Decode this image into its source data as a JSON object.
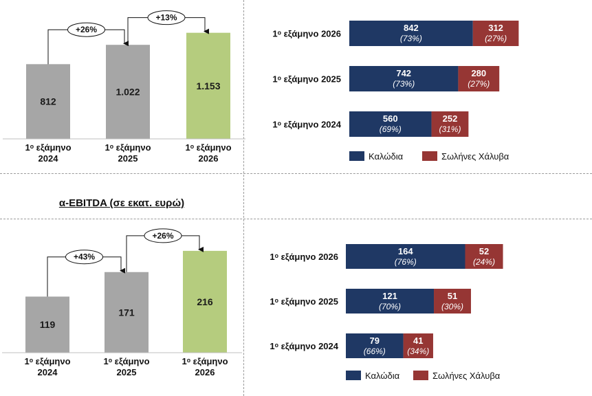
{
  "section_title": "α-EBITDA (σε εκατ. ευρώ)",
  "colors": {
    "gray_bar": "#a6a6a6",
    "green_bar": "#b5cc7e",
    "navy": "#1f3864",
    "red": "#963634"
  },
  "chart_data": [
    {
      "type": "bar",
      "title": "",
      "categories": [
        [
          "1ᵒ εξάμηνο",
          "2024"
        ],
        [
          "1ᵒ εξάμηνο",
          "2025"
        ],
        [
          "1ᵒ εξάμηνο",
          "2026"
        ]
      ],
      "values": [
        812,
        1022,
        1153
      ],
      "value_labels": [
        "812",
        "1.022",
        "1.153"
      ],
      "growth": [
        "+26%",
        "+13%"
      ],
      "ylim": [
        0,
        1300
      ]
    },
    {
      "type": "bar",
      "orientation": "horizontal",
      "stacked": true,
      "categories": [
        "1ᵒ εξάμηνο 2026",
        "1ᵒ εξάμηνο 2025",
        "1ᵒ εξάμηνο 2024"
      ],
      "series": [
        {
          "name": "Καλώδια",
          "values": [
            842,
            742,
            560
          ],
          "percents": [
            "(73%)",
            "(73%)",
            "(69%)"
          ]
        },
        {
          "name": "Σωλήνες Χάλυβα",
          "values": [
            312,
            280,
            252
          ],
          "percents": [
            "(27%)",
            "(27%)",
            "(31%)"
          ]
        }
      ],
      "legend": "bottom"
    },
    {
      "type": "bar",
      "title": "α-EBITDA (σε εκατ. ευρώ)",
      "categories": [
        [
          "1ᵒ εξάμηνο",
          "2024"
        ],
        [
          "1ᵒ εξάμηνο",
          "2025"
        ],
        [
          "1ᵒ εξάμηνο",
          "2026"
        ]
      ],
      "values": [
        119,
        171,
        216
      ],
      "value_labels": [
        "119",
        "171",
        "216"
      ],
      "growth": [
        "+43%",
        "+26%"
      ],
      "ylim": [
        0,
        245
      ]
    },
    {
      "type": "bar",
      "orientation": "horizontal",
      "stacked": true,
      "categories": [
        "1ᵒ εξάμηνο 2026",
        "1ᵒ εξάμηνο 2025",
        "1ᵒ εξάμηνο 2024"
      ],
      "series": [
        {
          "name": "Καλώδια",
          "values": [
            164,
            121,
            79
          ],
          "percents": [
            "(76%)",
            "(70%)",
            "(66%)"
          ]
        },
        {
          "name": "Σωλήνες Χάλυβα",
          "values": [
            52,
            51,
            41
          ],
          "percents": [
            "(24%)",
            "(30%)",
            "(34%)"
          ]
        }
      ],
      "legend": "bottom"
    }
  ]
}
